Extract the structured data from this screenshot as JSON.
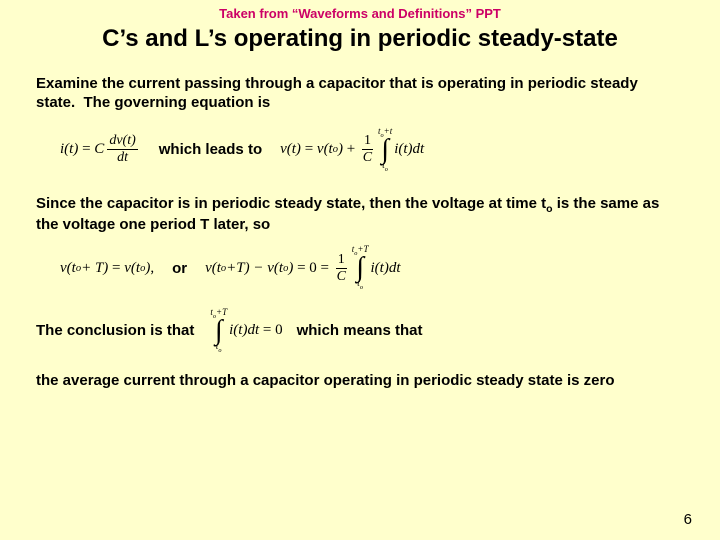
{
  "header_note": "Taken from “Waveforms and Definitions” PPT",
  "title": "C’s and L’s operating in periodic steady-state",
  "para1": "Examine the current passing through a capacitor that is operating in periodic steady state.  The governing equation is",
  "connector_which_leads_to": "which leads to",
  "para2_a": "Since the capacitor is in periodic steady state, then the voltage at time t",
  "para2_sub": "o",
  "para2_b": " is the same as the voltage one period T later, so",
  "connector_or": "or",
  "conclusion_a": "The conclusion is that",
  "conclusion_b": "which means that",
  "para3": "the average current through a capacitor operating in periodic steady state is zero",
  "page_number": "6",
  "colors": {
    "background": "#ffffcc",
    "header_note": "#cc0066",
    "text": "#000000"
  },
  "fonts": {
    "body_family": "Arial",
    "equation_family": "Times New Roman",
    "title_size_pt": 24,
    "body_size_pt": 15,
    "header_note_size_pt": 13
  },
  "equations": {
    "eq1": "i(t) = C \\frac{dv(t)}{dt}",
    "eq2": "v(t) = v(t_o) + \\frac{1}{C} \\int_{t_o}^{t_o+t} i(t)\\,dt",
    "eq3": "v(t_o + T) = v(t_o),",
    "eq4": "v(t_o+T) - v(t_o) = 0 = \\frac{1}{C} \\int_{t_o}^{t_o+T} i(t)\\,dt",
    "eq5": "\\int_{t_o}^{t_o+T} i(t)\\,dt = 0"
  }
}
